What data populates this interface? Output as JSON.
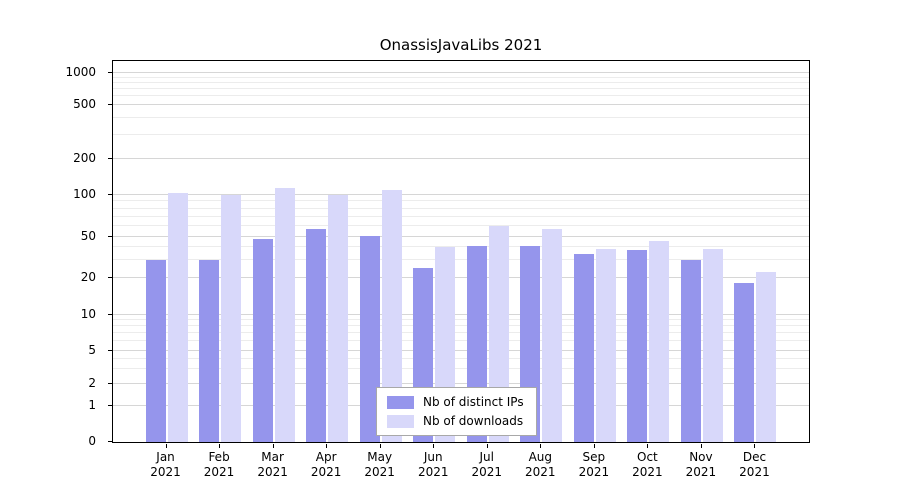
{
  "chart_data": {
    "type": "bar",
    "title": "OnassisJavaLibs 2021",
    "categories": [
      "Jan 2021",
      "Feb 2021",
      "Mar 2021",
      "Apr 2021",
      "May 2021",
      "Jun 2021",
      "Jul 2021",
      "Aug 2021",
      "Sep 2021",
      "Oct 2021",
      "Nov 2021",
      "Dec 2021"
    ],
    "series": [
      {
        "name": "Nb of distinct IPs",
        "color": "#9595ec",
        "values": [
          30,
          30,
          48,
          57,
          51,
          25,
          41,
          41,
          34,
          37,
          30,
          18
        ]
      },
      {
        "name": "Nb of downloads",
        "color": "#d8d8fa",
        "values": [
          105,
          100,
          115,
          100,
          110,
          40,
          60,
          57,
          38,
          46,
          38,
          23
        ]
      }
    ],
    "yticks": [
      0,
      1,
      2,
      5,
      10,
      20,
      50,
      100,
      200,
      500,
      1000
    ],
    "ylim": [
      0,
      1000
    ],
    "scale": "symlog",
    "grid": true,
    "legend_position": "bottom-center",
    "colors": {
      "grid_major": "#d6d6d6",
      "grid_minor": "#ececec",
      "frame": "#000000"
    },
    "y_scale_anchors": [
      {
        "v": 0,
        "f": 0.0
      },
      {
        "v": 1,
        "f": 0.094
      },
      {
        "v": 2,
        "f": 0.151
      },
      {
        "v": 5,
        "f": 0.24
      },
      {
        "v": 10,
        "f": 0.334
      },
      {
        "v": 20,
        "f": 0.431
      },
      {
        "v": 50,
        "f": 0.538
      },
      {
        "v": 100,
        "f": 0.648
      },
      {
        "v": 200,
        "f": 0.742
      },
      {
        "v": 500,
        "f": 0.885
      },
      {
        "v": 1000,
        "f": 0.969
      }
    ]
  }
}
